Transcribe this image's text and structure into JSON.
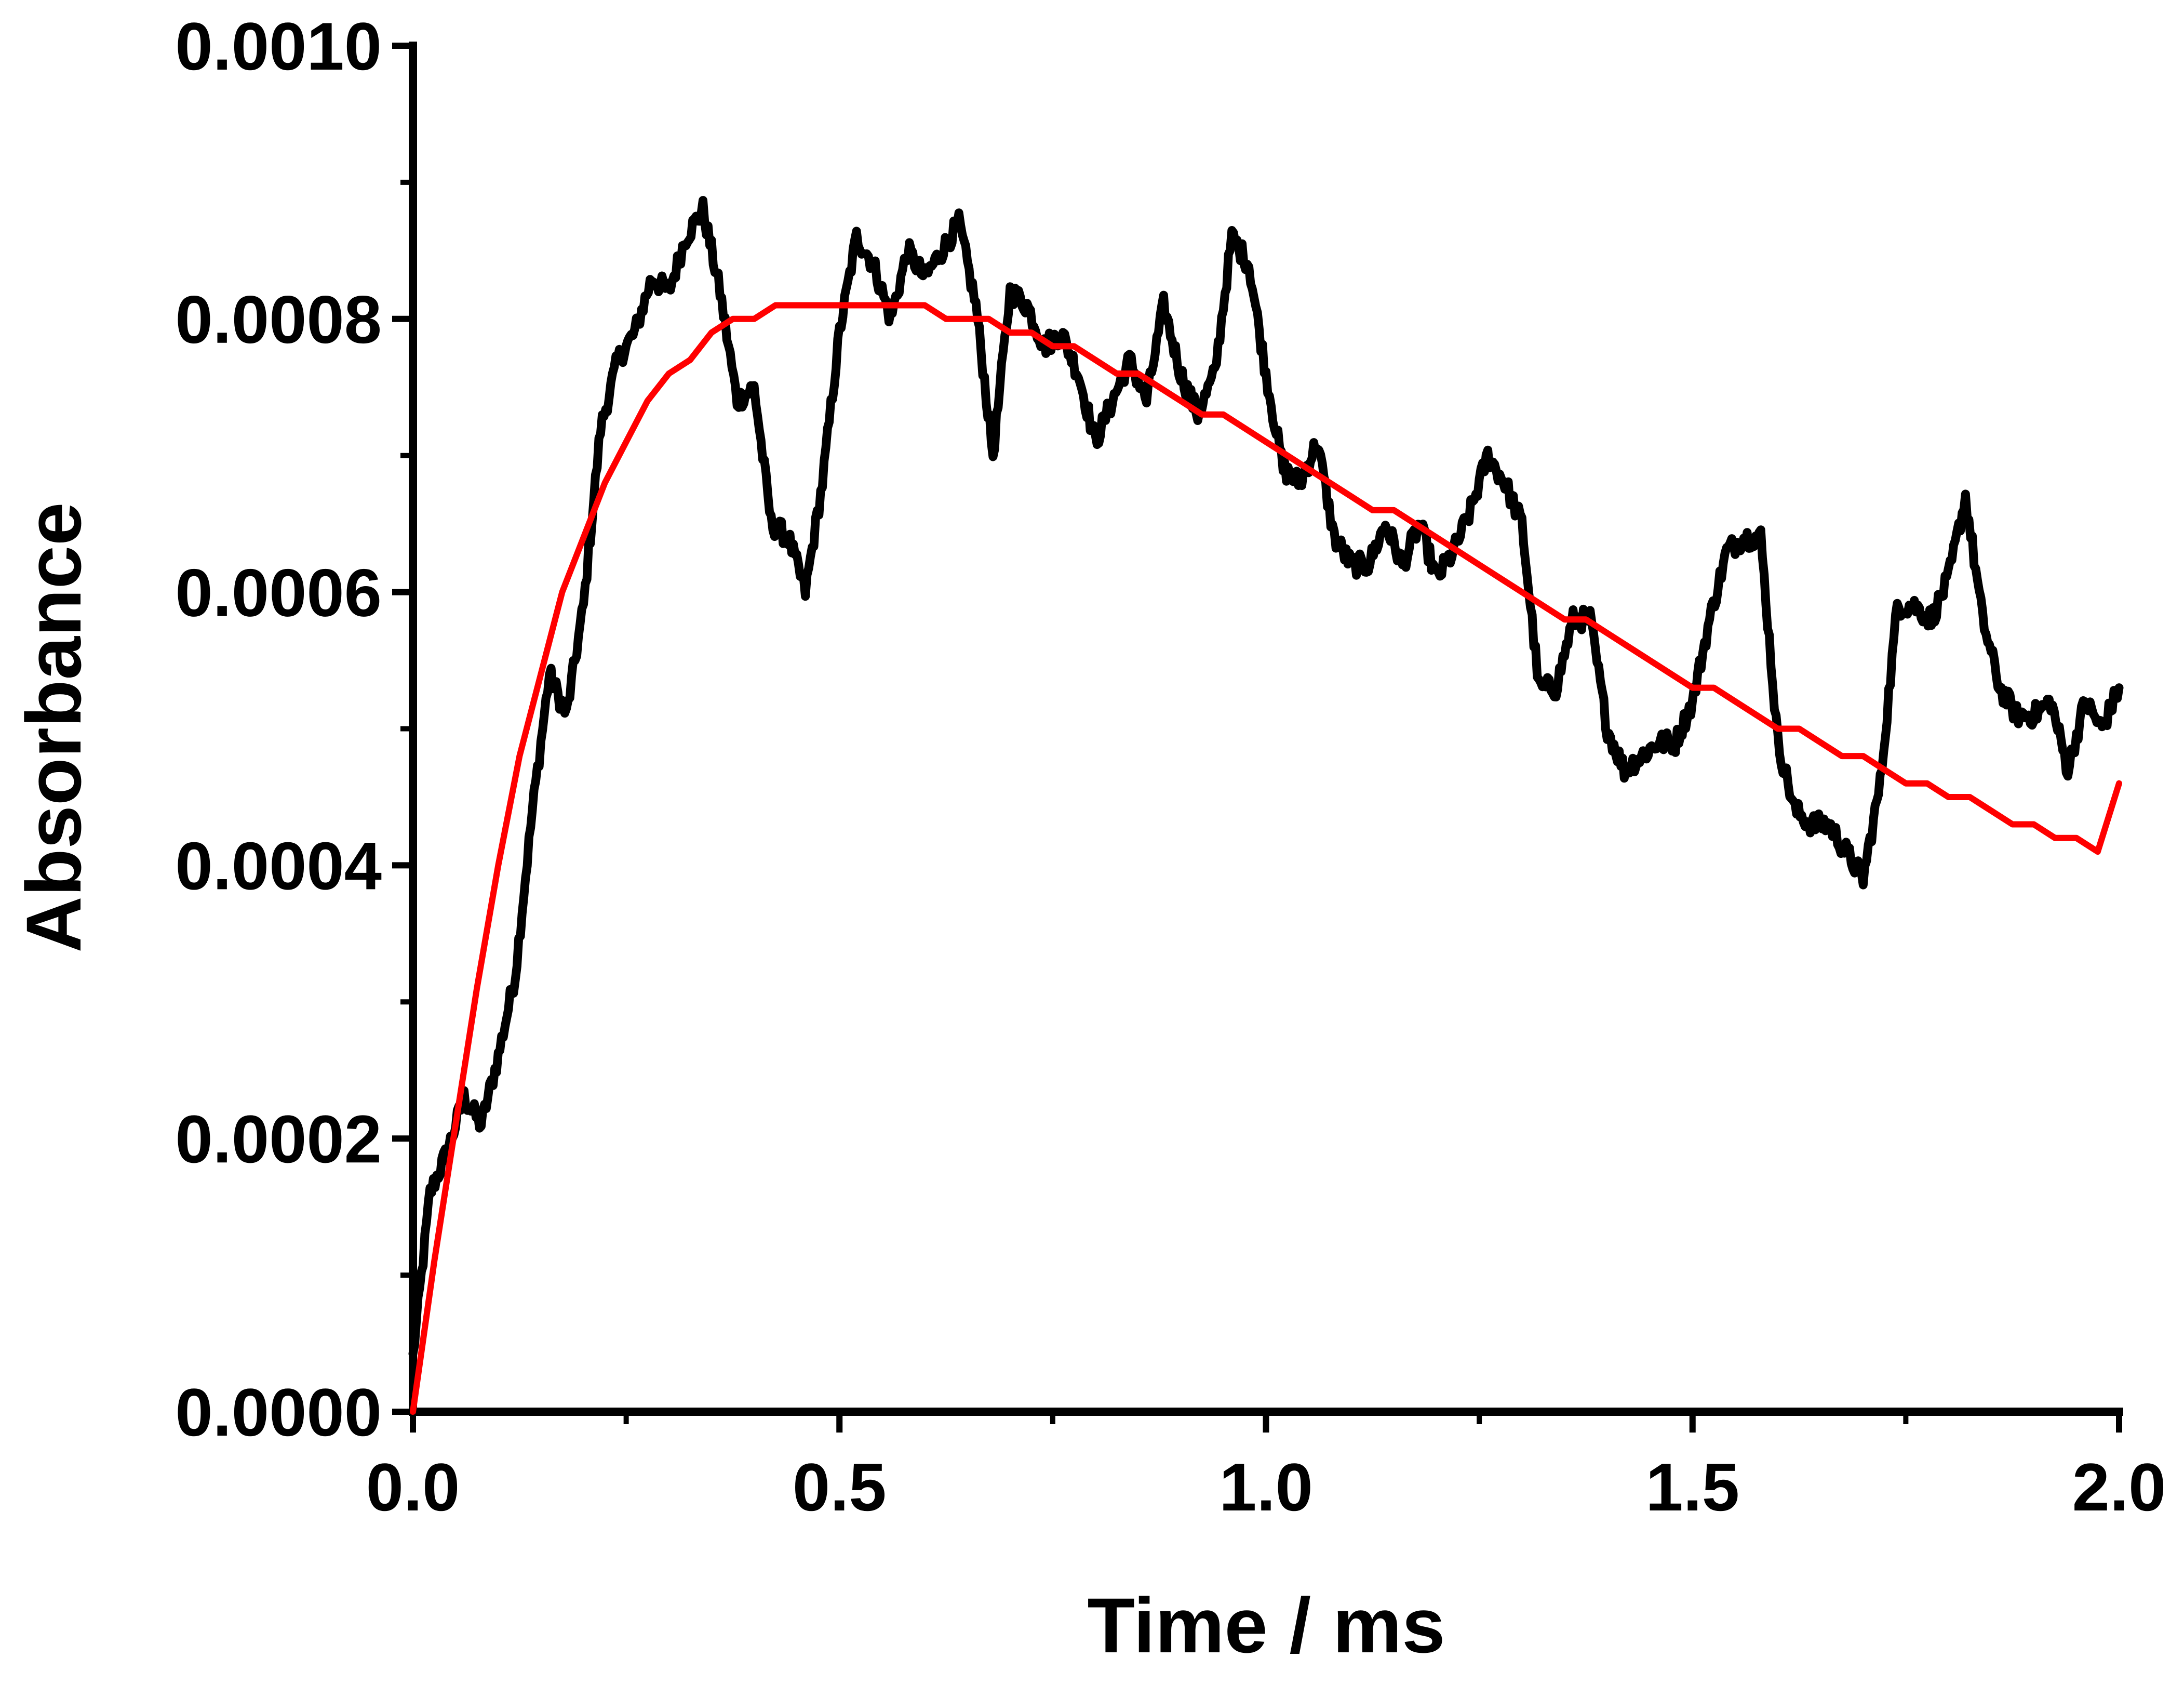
{
  "chart_data": {
    "type": "line",
    "xlabel": "Time / ms",
    "ylabel": "Absorbance",
    "xlim": [
      0.0,
      2.0
    ],
    "ylim": [
      0.0,
      0.001
    ],
    "x_ticks": [
      "0.0",
      "0.5",
      "1.0",
      "1.5",
      "2.0"
    ],
    "y_ticks": [
      "0.0000",
      "0.0002",
      "0.0004",
      "0.0006",
      "0.0008",
      "0.0010"
    ],
    "x_tick_values": [
      0.0,
      0.5,
      1.0,
      1.5,
      2.0
    ],
    "y_tick_values": [
      0.0,
      0.0002,
      0.0004,
      0.0006,
      0.0008,
      0.001
    ],
    "x_minor_tick_values": [
      0.25,
      0.75,
      1.25,
      1.75
    ],
    "y_minor_tick_values": [
      0.0001,
      0.0003,
      0.0005,
      0.0007,
      0.0009
    ],
    "grid": false,
    "legend": "none",
    "series": [
      {
        "color": "#000000",
        "style": "noisy",
        "x": [
          0.0,
          0.02,
          0.04,
          0.06,
          0.08,
          0.1,
          0.12,
          0.14,
          0.16,
          0.18,
          0.2,
          0.22,
          0.24,
          0.26,
          0.28,
          0.3,
          0.32,
          0.34,
          0.36,
          0.38,
          0.4,
          0.42,
          0.44,
          0.46,
          0.48,
          0.5,
          0.52,
          0.54,
          0.56,
          0.58,
          0.6,
          0.62,
          0.64,
          0.66,
          0.68,
          0.7,
          0.72,
          0.74,
          0.76,
          0.78,
          0.8,
          0.82,
          0.84,
          0.86,
          0.88,
          0.9,
          0.92,
          0.94,
          0.96,
          0.98,
          1.0,
          1.02,
          1.04,
          1.06,
          1.08,
          1.1,
          1.12,
          1.14,
          1.16,
          1.18,
          1.2,
          1.22,
          1.24,
          1.26,
          1.28,
          1.3,
          1.32,
          1.34,
          1.36,
          1.38,
          1.4,
          1.42,
          1.44,
          1.46,
          1.48,
          1.5,
          1.52,
          1.54,
          1.56,
          1.58,
          1.6,
          1.62,
          1.64,
          1.66,
          1.68,
          1.7,
          1.72,
          1.74,
          1.76,
          1.78,
          1.8,
          1.82,
          1.84,
          1.86,
          1.88,
          1.9,
          1.92,
          1.94,
          1.96,
          1.98,
          2.0
        ],
        "y": [
          4e-05,
          0.00016,
          0.00019,
          0.00023,
          0.00021,
          0.00026,
          0.00032,
          0.00044,
          0.00054,
          0.00051,
          0.00059,
          0.00072,
          0.00077,
          0.00079,
          0.00083,
          0.00082,
          0.00086,
          0.00088,
          0.00082,
          0.00074,
          0.00075,
          0.00065,
          0.00064,
          0.0006,
          0.00068,
          0.00079,
          0.00086,
          0.00084,
          0.0008,
          0.00085,
          0.00083,
          0.00085,
          0.00087,
          0.00081,
          0.0007,
          0.00082,
          0.00081,
          0.00078,
          0.00079,
          0.00076,
          0.00071,
          0.00074,
          0.00077,
          0.00074,
          0.00081,
          0.00076,
          0.00073,
          0.00076,
          0.00086,
          0.00084,
          0.00076,
          0.00069,
          0.00068,
          0.00071,
          0.00064,
          0.00062,
          0.00062,
          0.00065,
          0.00062,
          0.00065,
          0.00061,
          0.00063,
          0.00066,
          0.0007,
          0.00068,
          0.00065,
          0.00053,
          0.00053,
          0.00058,
          0.00058,
          0.0005,
          0.00047,
          0.00048,
          0.00049,
          0.00049,
          0.00052,
          0.00058,
          0.00063,
          0.00064,
          0.00064,
          0.00049,
          0.00044,
          0.00043,
          0.00043,
          0.00041,
          0.00039,
          0.00046,
          0.00059,
          0.00059,
          0.00058,
          0.00061,
          0.00067,
          0.00058,
          0.00053,
          0.00051,
          0.00051,
          0.00052,
          0.00047,
          0.00052,
          0.0005,
          0.00053
        ]
      },
      {
        "color": "#ff0000",
        "style": "smooth",
        "x": [
          0.0,
          0.025,
          0.05,
          0.075,
          0.1,
          0.125,
          0.15,
          0.175,
          0.2,
          0.225,
          0.25,
          0.275,
          0.3,
          0.325,
          0.35,
          0.375,
          0.4,
          0.425,
          0.45,
          0.475,
          0.5,
          0.525,
          0.55,
          0.575,
          0.6,
          0.625,
          0.65,
          0.675,
          0.7,
          0.725,
          0.75,
          0.775,
          0.8,
          0.825,
          0.85,
          0.875,
          0.9,
          0.925,
          0.95,
          0.975,
          1.0,
          1.025,
          1.05,
          1.075,
          1.1,
          1.125,
          1.15,
          1.175,
          1.2,
          1.225,
          1.25,
          1.275,
          1.3,
          1.325,
          1.35,
          1.375,
          1.4,
          1.425,
          1.45,
          1.475,
          1.5,
          1.525,
          1.55,
          1.575,
          1.6,
          1.625,
          1.65,
          1.675,
          1.7,
          1.725,
          1.75,
          1.775,
          1.8,
          1.825,
          1.85,
          1.875,
          1.9,
          1.925,
          1.95,
          1.975,
          2.0
        ],
        "y": [
          0.0,
          0.00011,
          0.00021,
          0.00031,
          0.0004,
          0.00048,
          0.00054,
          0.0006,
          0.00064,
          0.00068,
          0.00071,
          0.00074,
          0.00076,
          0.00077,
          0.00079,
          0.0008,
          0.0008,
          0.00081,
          0.00081,
          0.00081,
          0.00081,
          0.00081,
          0.00081,
          0.00081,
          0.00081,
          0.0008,
          0.0008,
          0.0008,
          0.00079,
          0.00079,
          0.00078,
          0.00078,
          0.00077,
          0.00076,
          0.00076,
          0.00075,
          0.00074,
          0.00073,
          0.00073,
          0.00072,
          0.00071,
          0.0007,
          0.00069,
          0.00068,
          0.00067,
          0.00066,
          0.00066,
          0.00065,
          0.00064,
          0.00063,
          0.00062,
          0.00061,
          0.0006,
          0.00059,
          0.00058,
          0.00058,
          0.00057,
          0.00056,
          0.00055,
          0.00054,
          0.00053,
          0.00053,
          0.00052,
          0.00051,
          0.0005,
          0.0005,
          0.00049,
          0.00048,
          0.00048,
          0.00047,
          0.00046,
          0.00046,
          0.00045,
          0.00045,
          0.00044,
          0.00043,
          0.00043,
          0.00042,
          0.00042,
          0.00041,
          0.00046
        ]
      }
    ]
  }
}
